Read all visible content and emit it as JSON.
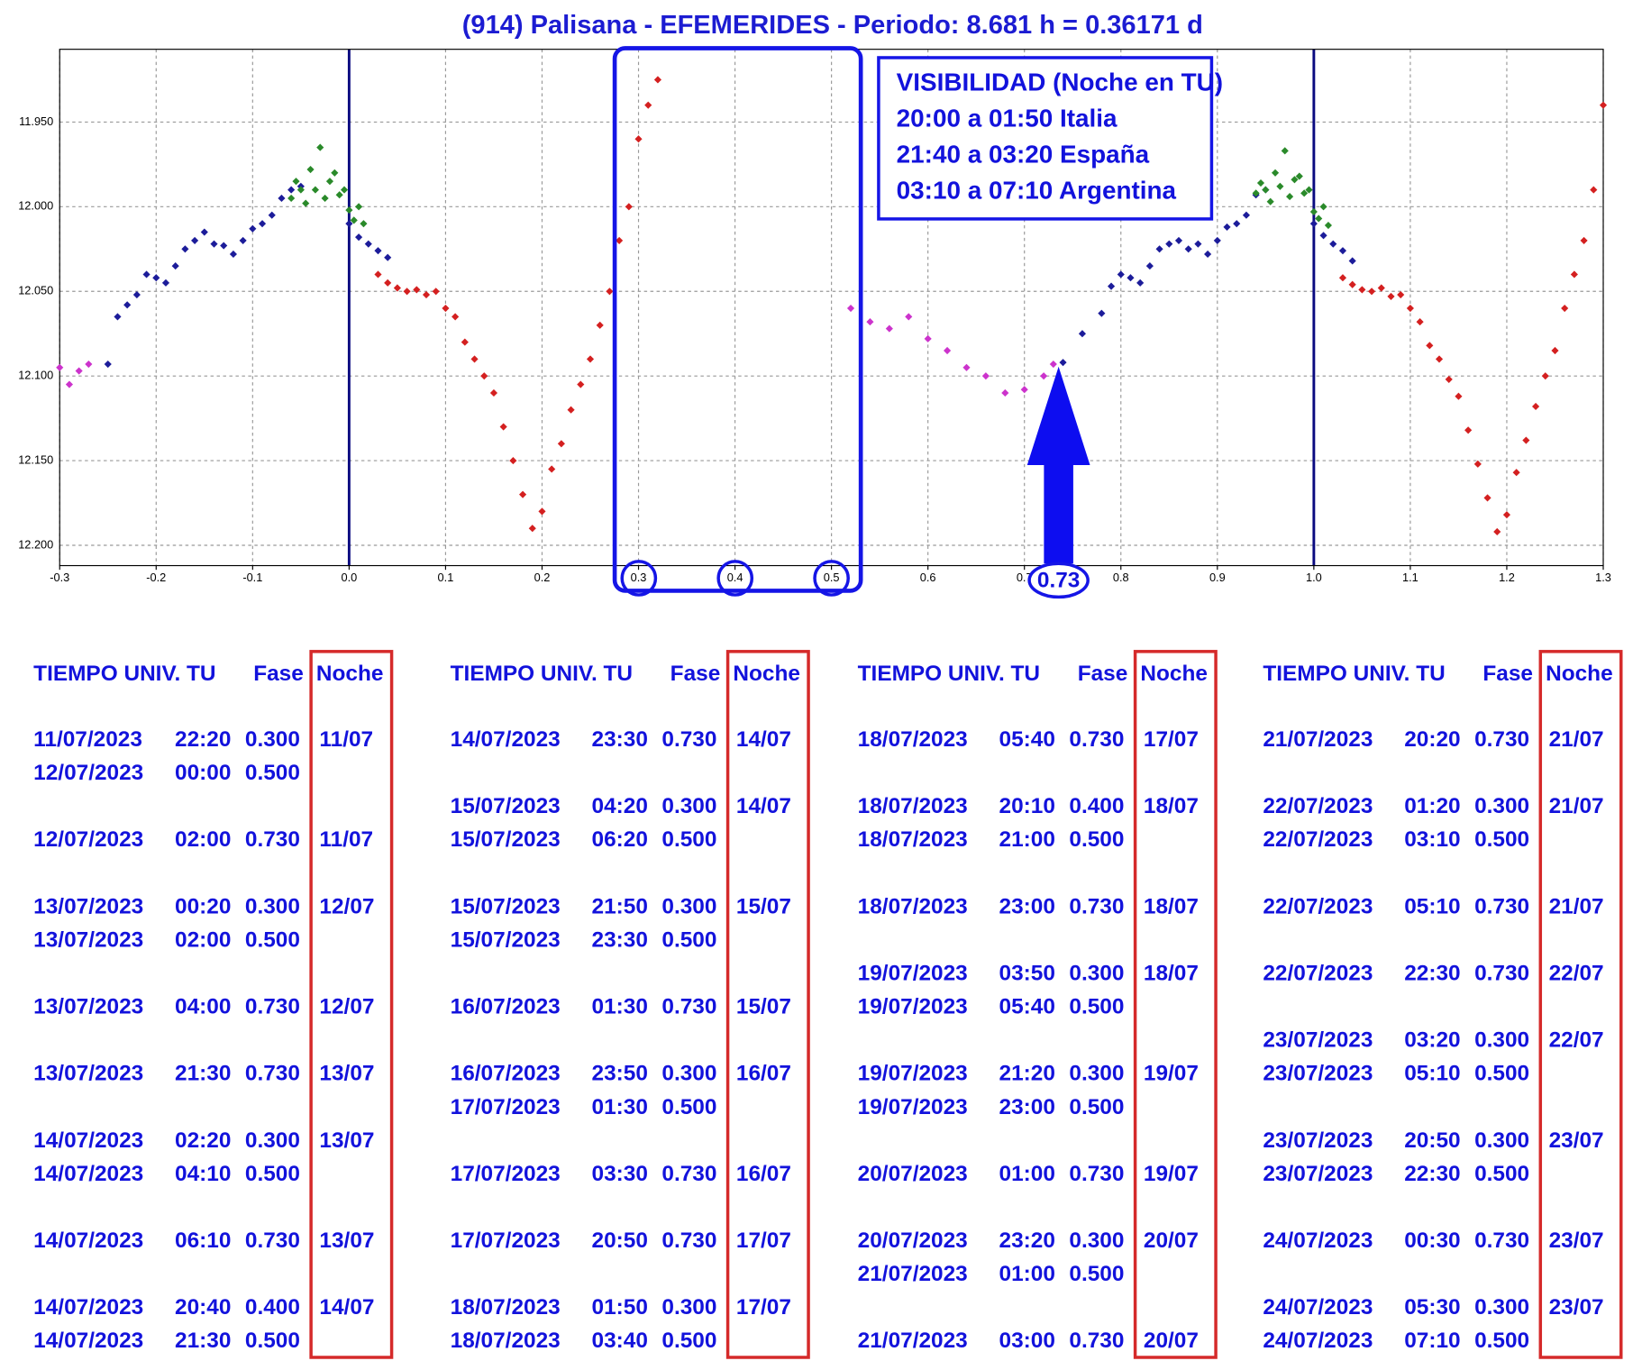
{
  "chart_data": {
    "type": "scatter",
    "title": "(914) Palisana - EFEMERIDES - Periodo: 8.681 h = 0.36171 d",
    "xlim": [
      -0.3,
      1.3
    ],
    "ylim": [
      12.212,
      11.907
    ],
    "xticks": [
      -0.3,
      -0.2,
      -0.1,
      {
        "value": 0,
        "label": "0.0"
      },
      0.1,
      0.2,
      0.3,
      0.4,
      0.5,
      0.6,
      0.7,
      0.8,
      0.9,
      {
        "value": 1,
        "label": "1.0"
      },
      1.1,
      1.2,
      1.3
    ],
    "yticks": [
      {
        "value": 11.95,
        "label": "11.950"
      },
      {
        "value": 12.0,
        "label": "12.000"
      },
      {
        "value": 12.05,
        "label": "12.050"
      },
      {
        "value": 12.1,
        "label": "12.100"
      },
      {
        "value": 12.15,
        "label": "12.150"
      },
      {
        "value": 12.2,
        "label": "12.200"
      }
    ],
    "grid": true,
    "vlines": [
      0,
      1
    ],
    "series": [
      {
        "color": "#1c1c9a",
        "x": [
          -0.25,
          -0.24,
          -0.23,
          -0.22,
          -0.21,
          -0.2,
          -0.19,
          -0.18,
          -0.17,
          -0.16,
          -0.15,
          -0.14,
          -0.13,
          -0.12,
          -0.11,
          -0.1,
          -0.09,
          -0.08,
          -0.07,
          -0.06,
          -0.05,
          0.0,
          0.01,
          0.02,
          0.03,
          0.04,
          0.74,
          0.76,
          0.78,
          0.79,
          0.8,
          0.81,
          0.82,
          0.83,
          0.84,
          0.85,
          0.86,
          0.87,
          0.88,
          0.89,
          0.9,
          0.91,
          0.92,
          0.93,
          0.94,
          0.95,
          1.0,
          1.01,
          1.02,
          1.03,
          1.04
        ],
        "values": [
          12.093,
          12.065,
          12.058,
          12.052,
          12.04,
          12.042,
          12.045,
          12.035,
          12.025,
          12.02,
          12.015,
          12.022,
          12.023,
          12.028,
          12.02,
          12.013,
          12.01,
          12.005,
          11.995,
          11.99,
          11.988,
          12.01,
          12.018,
          12.022,
          12.026,
          12.03,
          12.092,
          12.075,
          12.063,
          12.047,
          12.04,
          12.042,
          12.045,
          12.035,
          12.025,
          12.022,
          12.02,
          12.025,
          12.022,
          12.028,
          12.02,
          12.012,
          12.01,
          12.005,
          11.993,
          11.99,
          12.01,
          12.017,
          12.022,
          12.026,
          12.032
        ]
      },
      {
        "color": "#2a8a2a",
        "x": [
          -0.06,
          -0.055,
          -0.05,
          -0.045,
          -0.04,
          -0.035,
          -0.03,
          -0.025,
          -0.02,
          -0.015,
          -0.01,
          -0.005,
          0.0,
          0.005,
          0.01,
          0.015,
          0.94,
          0.945,
          0.95,
          0.955,
          0.96,
          0.965,
          0.97,
          0.975,
          0.98,
          0.985,
          0.99,
          0.995,
          1.0,
          1.005,
          1.01,
          1.015
        ],
        "values": [
          11.995,
          11.985,
          11.99,
          11.998,
          11.978,
          11.99,
          11.965,
          11.995,
          11.985,
          11.98,
          11.993,
          11.99,
          12.002,
          12.008,
          12.0,
          12.01,
          11.992,
          11.986,
          11.99,
          11.997,
          11.98,
          11.988,
          11.967,
          11.994,
          11.984,
          11.982,
          11.992,
          11.99,
          12.003,
          12.007,
          12.0,
          12.011
        ]
      },
      {
        "color": "#d42020",
        "x": [
          0.03,
          0.04,
          0.05,
          0.06,
          0.07,
          0.08,
          0.09,
          0.1,
          0.11,
          0.12,
          0.13,
          0.14,
          0.15,
          0.16,
          0.17,
          0.18,
          0.19,
          0.2,
          0.21,
          0.22,
          0.23,
          0.24,
          0.25,
          0.26,
          0.27,
          0.28,
          0.29,
          0.3,
          0.31,
          0.32,
          1.03,
          1.04,
          1.05,
          1.06,
          1.07,
          1.08,
          1.09,
          1.1,
          1.11,
          1.12,
          1.13,
          1.14,
          1.15,
          1.16,
          1.17,
          1.18,
          1.19,
          1.2,
          1.21,
          1.22,
          1.23,
          1.24,
          1.25,
          1.26,
          1.27,
          1.28,
          1.29,
          1.3
        ],
        "values": [
          12.04,
          12.045,
          12.048,
          12.05,
          12.049,
          12.052,
          12.05,
          12.06,
          12.065,
          12.08,
          12.09,
          12.1,
          12.11,
          12.13,
          12.15,
          12.17,
          12.19,
          12.18,
          12.155,
          12.14,
          12.12,
          12.105,
          12.09,
          12.07,
          12.05,
          12.02,
          12.0,
          11.96,
          11.94,
          11.925,
          12.042,
          12.046,
          12.049,
          12.05,
          12.048,
          12.053,
          12.052,
          12.06,
          12.068,
          12.082,
          12.09,
          12.102,
          12.112,
          12.132,
          12.152,
          12.172,
          12.192,
          12.182,
          12.157,
          12.138,
          12.118,
          12.1,
          12.085,
          12.06,
          12.04,
          12.02,
          11.99,
          11.94
        ]
      },
      {
        "color": "#cc33cc",
        "x": [
          -0.3,
          -0.29,
          -0.28,
          -0.27,
          0.52,
          0.54,
          0.56,
          0.58,
          0.6,
          0.62,
          0.64,
          0.66,
          0.68,
          0.7,
          0.72,
          0.73
        ],
        "values": [
          12.095,
          12.105,
          12.097,
          12.093,
          12.06,
          12.068,
          12.072,
          12.065,
          12.078,
          12.085,
          12.095,
          12.1,
          12.11,
          12.108,
          12.1,
          12.093
        ]
      }
    ],
    "annotations": {
      "visibility": [
        "VISIBILIDAD (Noche en TU)",
        "20:00 a 01:50 Italia",
        "21:40 a 03:20 España",
        "03:10 a 07:10 Argentina"
      ],
      "arrow": {
        "x": 0.73
      }
    }
  },
  "tables": [
    {
      "headers": [
        "TIEMPO UNIV. TU",
        "Fase",
        "Noche"
      ],
      "rows": [
        [
          "11/07/2023",
          "22:20",
          "0.300",
          "11/07"
        ],
        [
          "12/07/2023",
          "00:00",
          "0.500"
        ],
        null,
        [
          "12/07/2023",
          "02:00",
          "0.730",
          "11/07"
        ],
        null,
        [
          "13/07/2023",
          "00:20",
          "0.300",
          "12/07"
        ],
        [
          "13/07/2023",
          "02:00",
          "0.500"
        ],
        null,
        [
          "13/07/2023",
          "04:00",
          "0.730",
          "12/07"
        ],
        null,
        [
          "13/07/2023",
          "21:30",
          "0.730",
          "13/07"
        ],
        null,
        [
          "14/07/2023",
          "02:20",
          "0.300",
          "13/07"
        ],
        [
          "14/07/2023",
          "04:10",
          "0.500"
        ],
        null,
        [
          "14/07/2023",
          "06:10",
          "0.730",
          "13/07"
        ],
        null,
        [
          "14/07/2023",
          "20:40",
          "0.400",
          "14/07"
        ],
        [
          "14/07/2023",
          "21:30",
          "0.500"
        ]
      ]
    },
    {
      "headers": [
        "TIEMPO UNIV. TU",
        "Fase",
        "Noche"
      ],
      "rows": [
        [
          "14/07/2023",
          "23:30",
          "0.730",
          "14/07"
        ],
        null,
        [
          "15/07/2023",
          "04:20",
          "0.300",
          "14/07"
        ],
        [
          "15/07/2023",
          "06:20",
          "0.500"
        ],
        null,
        [
          "15/07/2023",
          "21:50",
          "0.300",
          "15/07"
        ],
        [
          "15/07/2023",
          "23:30",
          "0.500"
        ],
        null,
        [
          "16/07/2023",
          "01:30",
          "0.730",
          "15/07"
        ],
        null,
        [
          "16/07/2023",
          "23:50",
          "0.300",
          "16/07"
        ],
        [
          "17/07/2023",
          "01:30",
          "0.500"
        ],
        null,
        [
          "17/07/2023",
          "03:30",
          "0.730",
          "16/07"
        ],
        null,
        [
          "17/07/2023",
          "20:50",
          "0.730",
          "17/07"
        ],
        null,
        [
          "18/07/2023",
          "01:50",
          "0.300",
          "17/07"
        ],
        [
          "18/07/2023",
          "03:40",
          "0.500"
        ]
      ]
    },
    {
      "headers": [
        "TIEMPO UNIV. TU",
        "Fase",
        "Noche"
      ],
      "rows": [
        [
          "18/07/2023",
          "05:40",
          "0.730",
          "17/07"
        ],
        null,
        [
          "18/07/2023",
          "20:10",
          "0.400",
          "18/07"
        ],
        [
          "18/07/2023",
          "21:00",
          "0.500"
        ],
        null,
        [
          "18/07/2023",
          "23:00",
          "0.730",
          "18/07"
        ],
        null,
        [
          "19/07/2023",
          "03:50",
          "0.300",
          "18/07"
        ],
        [
          "19/07/2023",
          "05:40",
          "0.500"
        ],
        null,
        [
          "19/07/2023",
          "21:20",
          "0.300",
          "19/07"
        ],
        [
          "19/07/2023",
          "23:00",
          "0.500"
        ],
        null,
        [
          "20/07/2023",
          "01:00",
          "0.730",
          "19/07"
        ],
        null,
        [
          "20/07/2023",
          "23:20",
          "0.300",
          "20/07"
        ],
        [
          "21/07/2023",
          "01:00",
          "0.500"
        ],
        null,
        [
          "21/07/2023",
          "03:00",
          "0.730",
          "20/07"
        ]
      ]
    },
    {
      "headers": [
        "TIEMPO UNIV. TU",
        "Fase",
        "Noche"
      ],
      "rows": [
        [
          "21/07/2023",
          "20:20",
          "0.730",
          "21/07"
        ],
        null,
        [
          "22/07/2023",
          "01:20",
          "0.300",
          "21/07"
        ],
        [
          "22/07/2023",
          "03:10",
          "0.500"
        ],
        null,
        [
          "22/07/2023",
          "05:10",
          "0.730",
          "21/07"
        ],
        null,
        [
          "22/07/2023",
          "22:30",
          "0.730",
          "22/07"
        ],
        null,
        [
          "23/07/2023",
          "03:20",
          "0.300",
          "22/07"
        ],
        [
          "23/07/2023",
          "05:10",
          "0.500"
        ],
        null,
        [
          "23/07/2023",
          "20:50",
          "0.300",
          "23/07"
        ],
        [
          "23/07/2023",
          "22:30",
          "0.500"
        ],
        null,
        [
          "24/07/2023",
          "00:30",
          "0.730",
          "23/07"
        ],
        null,
        [
          "24/07/2023",
          "05:30",
          "0.300",
          "23/07"
        ],
        [
          "24/07/2023",
          "07:10",
          "0.500"
        ]
      ]
    }
  ]
}
